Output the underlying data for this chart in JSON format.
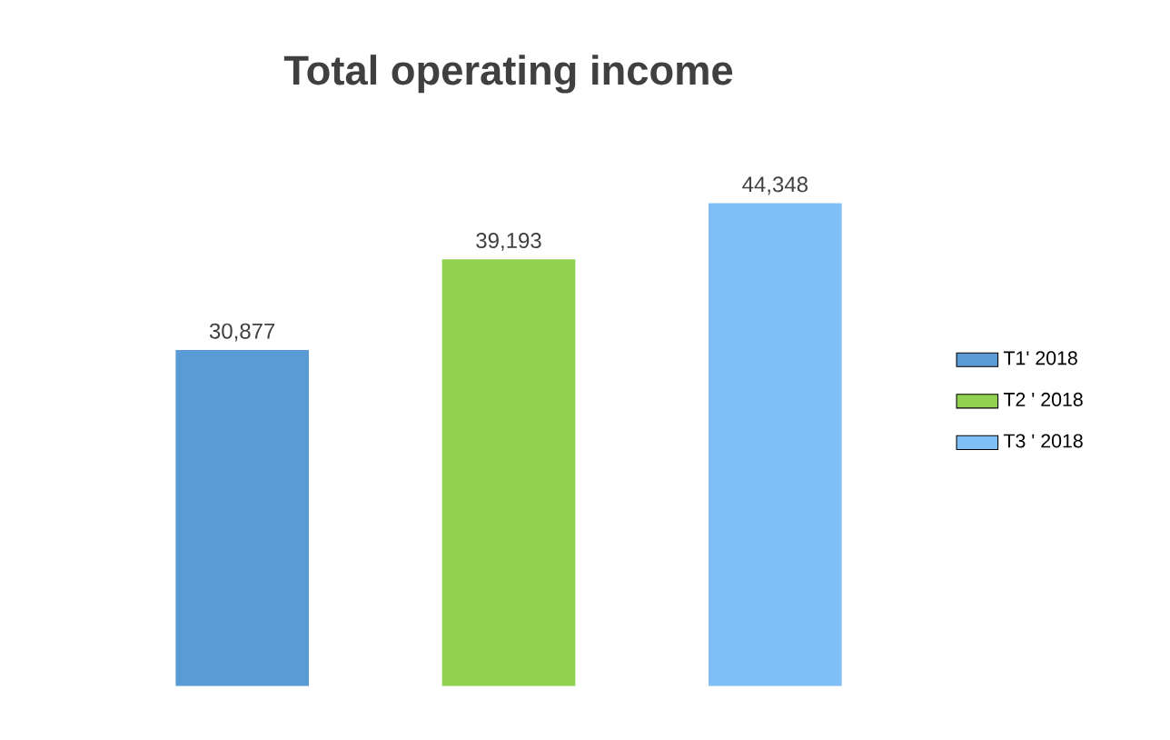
{
  "chart_data": {
    "type": "bar",
    "title": "Total operating income",
    "categories": [
      null,
      null,
      null
    ],
    "stacked": true,
    "series": [
      {
        "name": "T1' 2018",
        "color": "#5b9bd5",
        "values": [
          30877,
          null,
          null
        ],
        "value_labels": [
          "30,877",
          null,
          null
        ]
      },
      {
        "name": "T2 ' 2018",
        "color": "#92d050",
        "values": [
          null,
          39193,
          null
        ],
        "value_labels": [
          null,
          "39,193",
          null
        ]
      },
      {
        "name": "T3 ' 2018",
        "color": "#7fbff5",
        "values": [
          null,
          null,
          44348
        ],
        "value_labels": [
          null,
          null,
          "44,348"
        ]
      }
    ],
    "legend": "right"
  }
}
